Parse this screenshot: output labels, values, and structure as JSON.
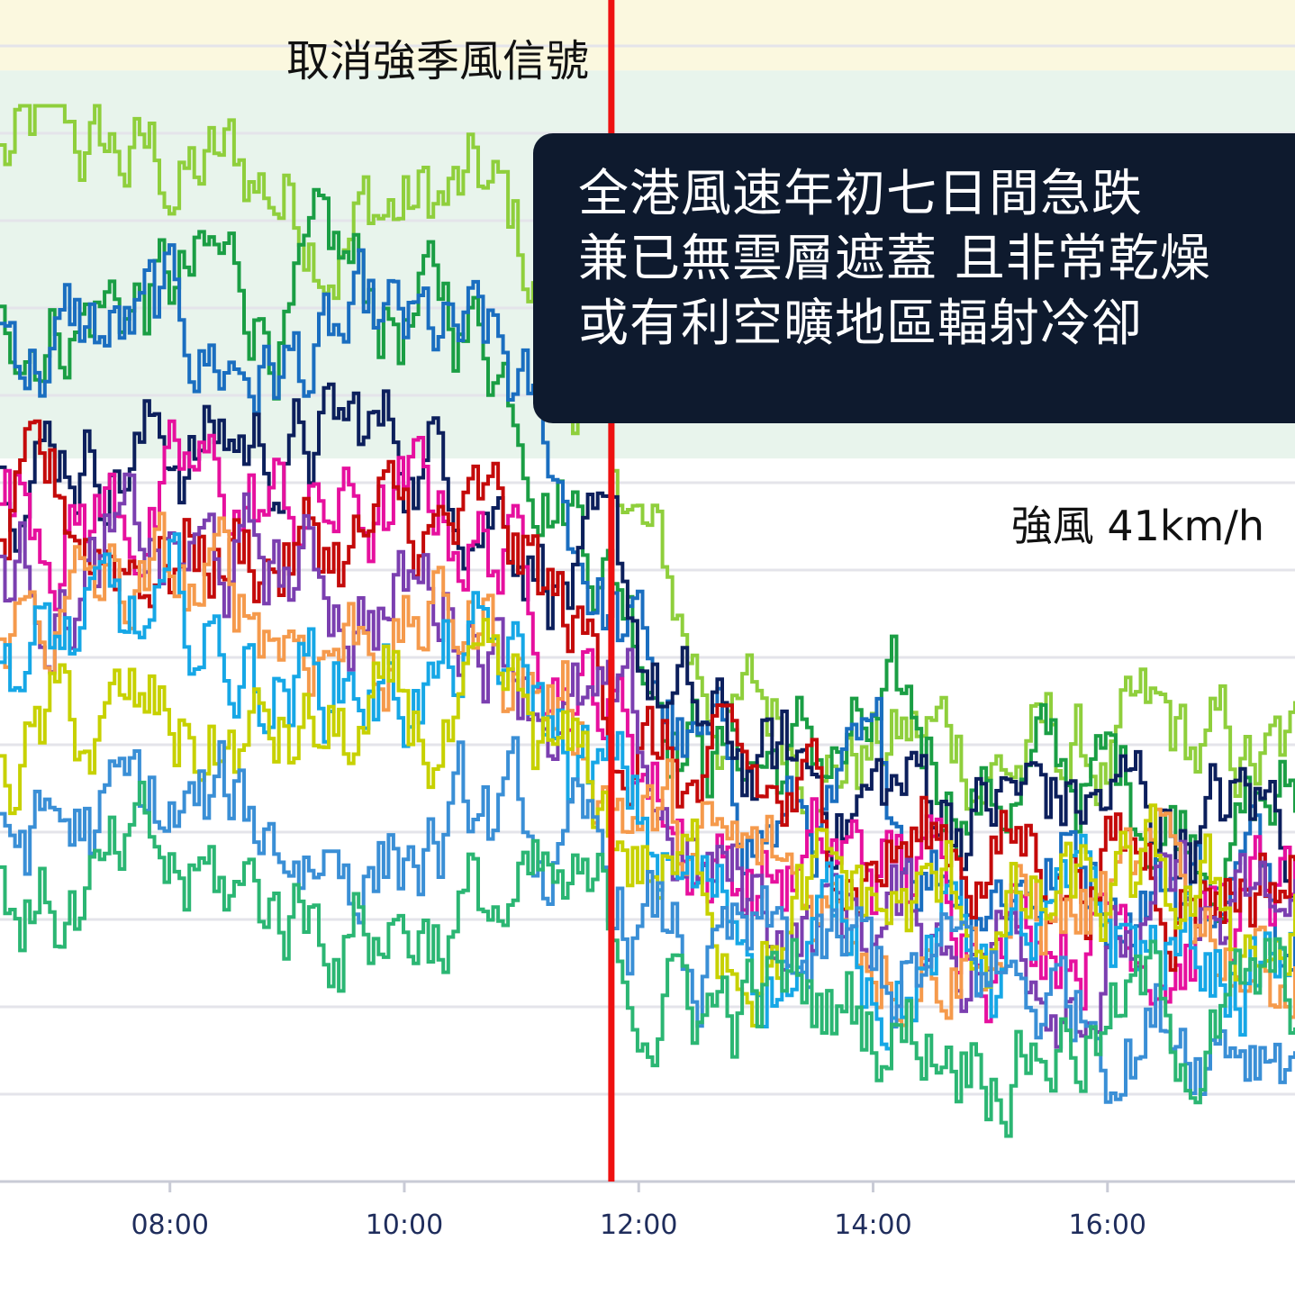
{
  "annotations": {
    "cancel_signal_label": "取消強季風信號",
    "strong_wind_label": "強風 41km/h",
    "callout_lines": [
      "全港風速年初七日間急跌",
      "兼已無雲層遮蓋 且非常乾燥",
      "或有利空曠地區輻射冷卻"
    ]
  },
  "colors": {
    "top_band": "#fbf8df",
    "strong_band": "#e8f4ec",
    "marker_line": "#ee1111",
    "callout_bg": "#0e1a2e",
    "axis_text": "#1f2d5c",
    "series": [
      "#8fcf3c",
      "#1a9e44",
      "#1a6ec0",
      "#0c1f5c",
      "#e6109e",
      "#c40a0a",
      "#7b3fb0",
      "#f59a4c",
      "#16a7e6",
      "#c7d100",
      "#3a8fd6",
      "#2bb673"
    ]
  },
  "chart_data": {
    "type": "line",
    "x_unit": "time",
    "x_ticks": [
      "08:00",
      "10:00",
      "12:00",
      "14:00",
      "16:00"
    ],
    "x_tick_hours": [
      8,
      10,
      12,
      14,
      16
    ],
    "x_range_hours": [
      6.55,
      17.6
    ],
    "y_range_kmh": [
      0,
      67
    ],
    "gridlines": true,
    "marker_time": "11:46",
    "bands": [
      {
        "label": "取消強季風信號",
        "from_kmh": 63,
        "to_kmh": 67
      },
      {
        "label": "強風 41km/h",
        "from_kmh": 41,
        "to_kmh": 63
      }
    ],
    "series": [
      {
        "color": "#8fcf3c",
        "start_kmh": 58,
        "end_kmh": 22
      },
      {
        "color": "#1a9e44",
        "start_kmh": 51,
        "end_kmh": 21
      },
      {
        "color": "#1a6ec0",
        "start_kmh": 48,
        "end_kmh": 17
      },
      {
        "color": "#0c1f5c",
        "start_kmh": 43,
        "end_kmh": 20
      },
      {
        "color": "#e6109e",
        "start_kmh": 39,
        "end_kmh": 15
      },
      {
        "color": "#c40a0a",
        "start_kmh": 37,
        "end_kmh": 18
      },
      {
        "color": "#7b3fb0",
        "start_kmh": 35,
        "end_kmh": 13
      },
      {
        "color": "#f59a4c",
        "start_kmh": 33,
        "end_kmh": 14
      },
      {
        "color": "#16a7e6",
        "start_kmh": 30,
        "end_kmh": 12
      },
      {
        "color": "#c7d100",
        "start_kmh": 25,
        "end_kmh": 14
      },
      {
        "color": "#3a8fd6",
        "start_kmh": 20,
        "end_kmh": 10
      },
      {
        "color": "#2bb673",
        "start_kmh": 16,
        "end_kmh": 9
      }
    ]
  }
}
